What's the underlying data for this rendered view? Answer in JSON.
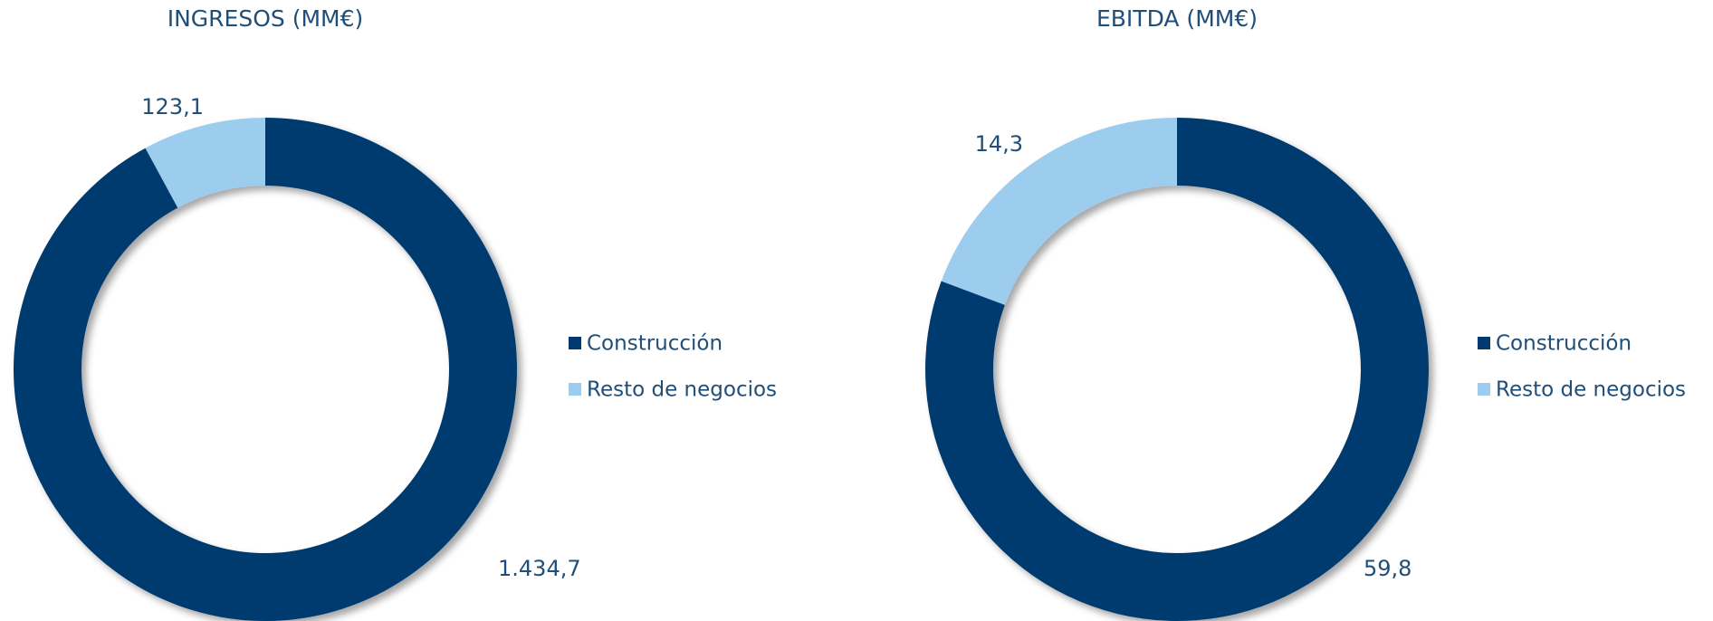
{
  "chart_data": [
    {
      "type": "pie",
      "title": "INGRESOS (MM€)",
      "donut": true,
      "categories": [
        "Construcción",
        "Resto de negocios"
      ],
      "values": [
        1434.7,
        123.1
      ],
      "value_labels": [
        "1.434,7",
        "123,1"
      ],
      "colors": [
        "#003a70",
        "#9dcdee"
      ]
    },
    {
      "type": "pie",
      "title": "EBITDA (MM€)",
      "donut": true,
      "categories": [
        "Construcción",
        "Resto de negocios"
      ],
      "values": [
        59.8,
        14.3
      ],
      "value_labels": [
        "59,8",
        "14,3"
      ],
      "colors": [
        "#003a70",
        "#9dcdee"
      ]
    }
  ]
}
